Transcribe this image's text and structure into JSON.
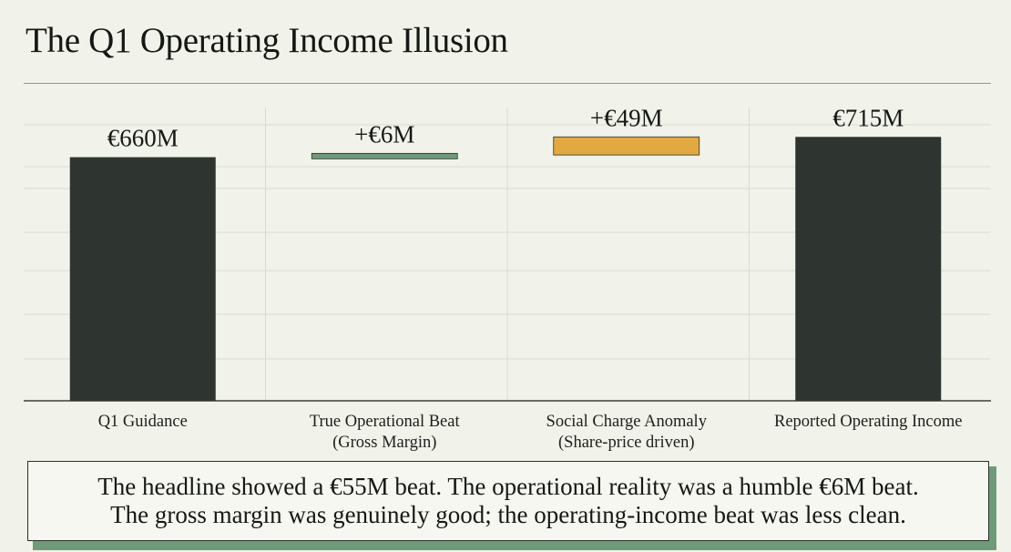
{
  "title": "The Q1 Operating Income Illusion",
  "chart_data": {
    "type": "bar",
    "subtype": "waterfall",
    "title": "The Q1 Operating Income Illusion",
    "ylim": [
      0,
      740
    ],
    "grid": true,
    "categories": [
      [
        "Q1 Guidance"
      ],
      [
        "True Operational Beat",
        "(Gross Margin)"
      ],
      [
        "Social Charge Anomaly",
        "(Share-price driven)"
      ],
      [
        "Reported Operating Income"
      ]
    ],
    "bars": [
      {
        "kind": "total",
        "start": 0,
        "end": 660,
        "label": "€660M",
        "color": "#2e3430"
      },
      {
        "kind": "delta",
        "start": 660,
        "end": 666,
        "label": "+€6M",
        "color": "#6f9a7a"
      },
      {
        "kind": "delta",
        "start": 666,
        "end": 715,
        "label": "+€49M",
        "color": "#e2a942"
      },
      {
        "kind": "total",
        "start": 0,
        "end": 715,
        "label": "€715M",
        "color": "#2e3430"
      }
    ]
  },
  "callout": {
    "line1": "The headline showed a €55M beat. The operational reality was a humble €6M beat.",
    "line2": "The gross margin was genuinely good; the operating-income beat was less clean."
  }
}
